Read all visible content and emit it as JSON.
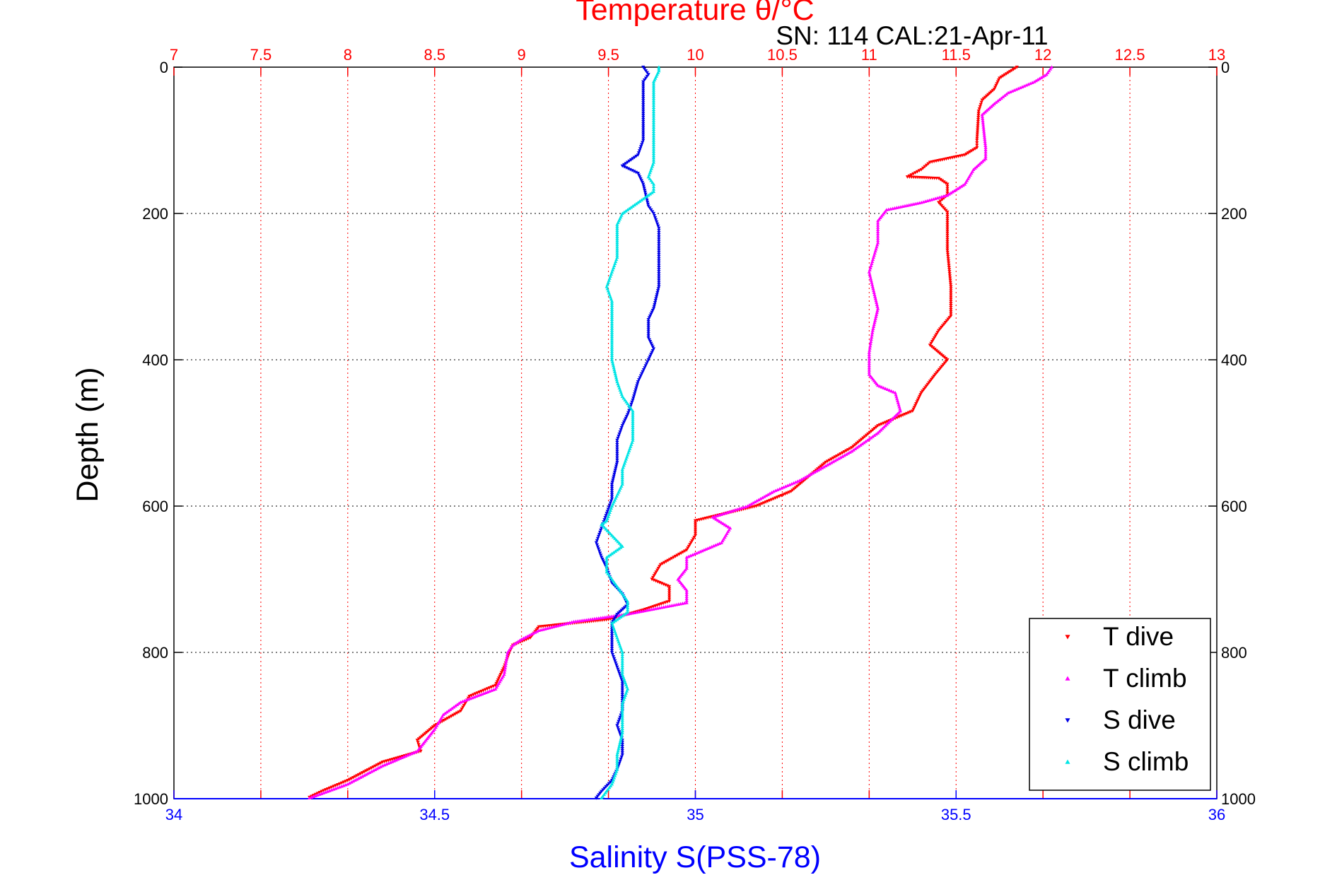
{
  "chart_data": {
    "type": "scatter",
    "title": "Temperature θ/°C",
    "subtitle": "SN: 114  CAL:21-Apr-11",
    "ylabel": "Depth (m)",
    "xlabel": "Salinity S(PSS-78)",
    "ylim": [
      0,
      1000
    ],
    "y_reversed": true,
    "y_ticks": [
      "0",
      "200",
      "400",
      "600",
      "800",
      "1000"
    ],
    "x_temperature_lim": [
      7,
      13
    ],
    "x_temperature_ticks": [
      "7",
      "7.5",
      "8",
      "8.5",
      "9",
      "9.5",
      "10",
      "10.5",
      "11",
      "11.5",
      "12",
      "12.5",
      "13"
    ],
    "x_salinity_lim": [
      34,
      36
    ],
    "x_salinity_ticks": [
      "34",
      "34.5",
      "35",
      "35.5",
      "36"
    ],
    "grid": true,
    "legend_position": "bottom-right",
    "colors": {
      "temperature_axis": "#ff0000",
      "salinity_axis": "#0000ff",
      "t_dive": "#ff0000",
      "t_climb": "#ff00ff",
      "s_dive": "#0000e6",
      "s_climb": "#00e5e5"
    },
    "series": [
      {
        "name": "T dive",
        "axis": "temperature",
        "color_key": "t_dive",
        "marker": "triangle-down",
        "points": [
          [
            11.85,
            0
          ],
          [
            11.75,
            15
          ],
          [
            11.72,
            30
          ],
          [
            11.65,
            45
          ],
          [
            11.63,
            60
          ],
          [
            11.62,
            100
          ],
          [
            11.62,
            110
          ],
          [
            11.55,
            120
          ],
          [
            11.35,
            130
          ],
          [
            11.3,
            140
          ],
          [
            11.22,
            150
          ],
          [
            11.4,
            152
          ],
          [
            11.45,
            160
          ],
          [
            11.45,
            175
          ],
          [
            11.4,
            185
          ],
          [
            11.45,
            198
          ],
          [
            11.45,
            250
          ],
          [
            11.47,
            300
          ],
          [
            11.47,
            340
          ],
          [
            11.4,
            360
          ],
          [
            11.35,
            380
          ],
          [
            11.45,
            400
          ],
          [
            11.38,
            420
          ],
          [
            11.3,
            445
          ],
          [
            11.25,
            470
          ],
          [
            11.05,
            490
          ],
          [
            10.9,
            520
          ],
          [
            10.75,
            540
          ],
          [
            10.65,
            560
          ],
          [
            10.55,
            580
          ],
          [
            10.35,
            600
          ],
          [
            10.0,
            620
          ],
          [
            10.0,
            640
          ],
          [
            9.95,
            660
          ],
          [
            9.8,
            680
          ],
          [
            9.75,
            700
          ],
          [
            9.85,
            710
          ],
          [
            9.85,
            730
          ],
          [
            9.7,
            742
          ],
          [
            9.5,
            755
          ],
          [
            9.1,
            765
          ],
          [
            9.05,
            780
          ],
          [
            8.95,
            790
          ],
          [
            8.93,
            800
          ],
          [
            8.9,
            820
          ],
          [
            8.85,
            845
          ],
          [
            8.7,
            860
          ],
          [
            8.65,
            880
          ],
          [
            8.5,
            900
          ],
          [
            8.4,
            920
          ],
          [
            8.42,
            935
          ],
          [
            8.2,
            950
          ],
          [
            8.0,
            975
          ],
          [
            7.85,
            990
          ],
          [
            7.78,
            998
          ]
        ]
      },
      {
        "name": "T climb",
        "axis": "temperature",
        "color_key": "t_climb",
        "marker": "triangle-up",
        "points": [
          [
            12.05,
            0
          ],
          [
            12.02,
            10
          ],
          [
            11.95,
            20
          ],
          [
            11.8,
            35
          ],
          [
            11.72,
            50
          ],
          [
            11.65,
            65
          ],
          [
            11.67,
            110
          ],
          [
            11.67,
            125
          ],
          [
            11.6,
            140
          ],
          [
            11.55,
            160
          ],
          [
            11.45,
            175
          ],
          [
            11.3,
            185
          ],
          [
            11.1,
            195
          ],
          [
            11.05,
            210
          ],
          [
            11.05,
            240
          ],
          [
            11.0,
            280
          ],
          [
            11.02,
            300
          ],
          [
            11.05,
            330
          ],
          [
            11.02,
            360
          ],
          [
            11.0,
            390
          ],
          [
            11.0,
            420
          ],
          [
            11.05,
            435
          ],
          [
            11.15,
            445
          ],
          [
            11.18,
            470
          ],
          [
            11.05,
            500
          ],
          [
            10.9,
            525
          ],
          [
            10.75,
            545
          ],
          [
            10.6,
            565
          ],
          [
            10.45,
            580
          ],
          [
            10.3,
            600
          ],
          [
            10.1,
            615
          ],
          [
            10.2,
            630
          ],
          [
            10.15,
            650
          ],
          [
            9.95,
            670
          ],
          [
            9.95,
            685
          ],
          [
            9.9,
            700
          ],
          [
            9.95,
            715
          ],
          [
            9.95,
            732
          ],
          [
            9.6,
            748
          ],
          [
            9.3,
            758
          ],
          [
            9.1,
            770
          ],
          [
            9.0,
            782
          ],
          [
            8.95,
            790
          ],
          [
            8.92,
            800
          ],
          [
            8.9,
            830
          ],
          [
            8.85,
            850
          ],
          [
            8.65,
            868
          ],
          [
            8.55,
            885
          ],
          [
            8.5,
            905
          ],
          [
            8.45,
            920
          ],
          [
            8.4,
            935
          ],
          [
            8.2,
            955
          ],
          [
            8.0,
            980
          ],
          [
            7.78,
            999
          ]
        ]
      },
      {
        "name": "S dive",
        "axis": "salinity",
        "color_key": "s_dive",
        "marker": "triangle-down",
        "points": [
          [
            34.9,
            0
          ],
          [
            34.91,
            10
          ],
          [
            34.9,
            20
          ],
          [
            34.9,
            40
          ],
          [
            34.9,
            80
          ],
          [
            34.9,
            100
          ],
          [
            34.89,
            120
          ],
          [
            34.86,
            135
          ],
          [
            34.89,
            145
          ],
          [
            34.9,
            160
          ],
          [
            34.91,
            190
          ],
          [
            34.92,
            200
          ],
          [
            34.93,
            220
          ],
          [
            34.93,
            250
          ],
          [
            34.93,
            300
          ],
          [
            34.92,
            330
          ],
          [
            34.91,
            345
          ],
          [
            34.91,
            370
          ],
          [
            34.92,
            385
          ],
          [
            34.91,
            400
          ],
          [
            34.89,
            430
          ],
          [
            34.88,
            455
          ],
          [
            34.87,
            475
          ],
          [
            34.86,
            490
          ],
          [
            34.85,
            510
          ],
          [
            34.85,
            540
          ],
          [
            34.84,
            570
          ],
          [
            34.84,
            590
          ],
          [
            34.83,
            610
          ],
          [
            34.82,
            630
          ],
          [
            34.81,
            650
          ],
          [
            34.82,
            670
          ],
          [
            34.83,
            685
          ],
          [
            34.84,
            705
          ],
          [
            34.86,
            720
          ],
          [
            34.87,
            735
          ],
          [
            34.85,
            748
          ],
          [
            34.84,
            760
          ],
          [
            34.84,
            780
          ],
          [
            34.84,
            800
          ],
          [
            34.85,
            820
          ],
          [
            34.86,
            840
          ],
          [
            34.86,
            860
          ],
          [
            34.86,
            880
          ],
          [
            34.85,
            900
          ],
          [
            34.86,
            920
          ],
          [
            34.86,
            940
          ],
          [
            34.85,
            960
          ],
          [
            34.84,
            975
          ],
          [
            34.82,
            990
          ],
          [
            34.81,
            999
          ]
        ]
      },
      {
        "name": "S climb",
        "axis": "salinity",
        "color_key": "s_climb",
        "marker": "triangle-up",
        "points": [
          [
            34.93,
            0
          ],
          [
            34.93,
            5
          ],
          [
            34.92,
            20
          ],
          [
            34.92,
            40
          ],
          [
            34.92,
            70
          ],
          [
            34.92,
            100
          ],
          [
            34.92,
            130
          ],
          [
            34.91,
            150
          ],
          [
            34.92,
            160
          ],
          [
            34.92,
            170
          ],
          [
            34.9,
            180
          ],
          [
            34.88,
            190
          ],
          [
            34.86,
            200
          ],
          [
            34.85,
            215
          ],
          [
            34.85,
            240
          ],
          [
            34.85,
            260
          ],
          [
            34.84,
            280
          ],
          [
            34.83,
            300
          ],
          [
            34.84,
            320
          ],
          [
            34.84,
            345
          ],
          [
            34.84,
            360
          ],
          [
            34.84,
            380
          ],
          [
            34.84,
            400
          ],
          [
            34.85,
            430
          ],
          [
            34.86,
            450
          ],
          [
            34.88,
            470
          ],
          [
            34.88,
            490
          ],
          [
            34.88,
            510
          ],
          [
            34.87,
            530
          ],
          [
            34.86,
            550
          ],
          [
            34.86,
            570
          ],
          [
            34.84,
            600
          ],
          [
            34.83,
            620
          ],
          [
            34.82,
            625
          ],
          [
            34.84,
            640
          ],
          [
            34.86,
            655
          ],
          [
            34.83,
            670
          ],
          [
            34.83,
            690
          ],
          [
            34.85,
            710
          ],
          [
            34.87,
            730
          ],
          [
            34.87,
            745
          ],
          [
            34.84,
            760
          ],
          [
            34.85,
            780
          ],
          [
            34.86,
            800
          ],
          [
            34.86,
            830
          ],
          [
            34.87,
            850
          ],
          [
            34.86,
            870
          ],
          [
            34.86,
            890
          ],
          [
            34.86,
            910
          ],
          [
            34.85,
            940
          ],
          [
            34.85,
            960
          ],
          [
            34.84,
            980
          ],
          [
            34.82,
            999
          ]
        ]
      }
    ]
  }
}
